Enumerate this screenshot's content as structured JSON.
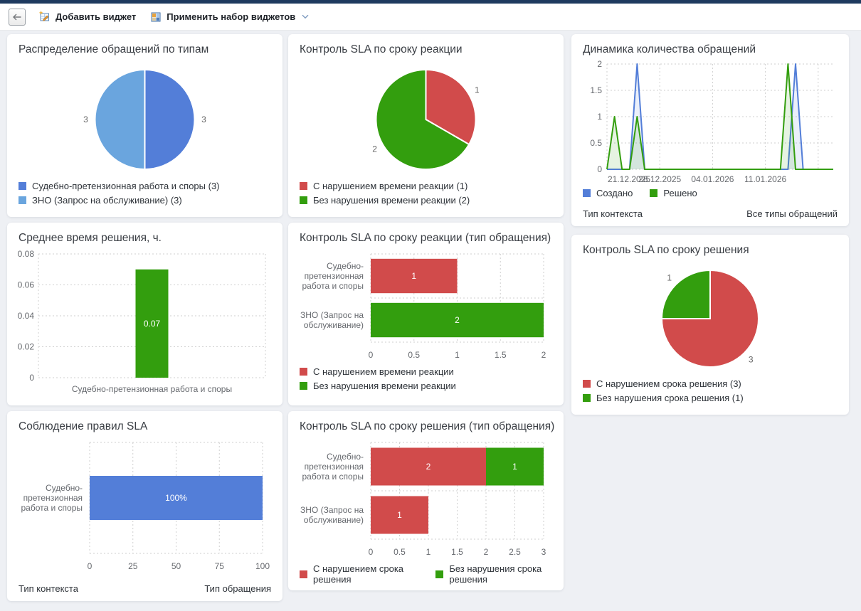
{
  "toolbar": {
    "add_widget": "Добавить виджет",
    "apply_set": "Применить набор виджетов"
  },
  "icons": {
    "back": "arrow-left-icon",
    "add_widget": "widget-pencil-icon",
    "apply_set": "widget-grid-icon",
    "chevron": "chevron-down-icon"
  },
  "colors": {
    "top_strip": "#1e3a5f",
    "page_background": "#eef0f4",
    "card_background": "#ffffff",
    "blue": "#537ed8",
    "light_blue": "#6aa5de",
    "red": "#d14b4b",
    "green": "#339e0e",
    "axis_text": "#66696e",
    "grid": "#cfcfcf"
  },
  "chart_data": [
    {
      "id": "requests-by-type",
      "type": "pie",
      "title": "Распределение обращений по типам",
      "slices": [
        {
          "label": "Судебно-претензионная работа и споры (3)",
          "value": 3,
          "callout": "3",
          "color": "#537ed8"
        },
        {
          "label": "ЗНО (Запрос на обслуживание) (3)",
          "value": 3,
          "callout": "3",
          "color": "#6aa5de"
        }
      ],
      "legend_position": "bottom",
      "legend_layout": "column"
    },
    {
      "id": "sla-reaction-control",
      "type": "pie",
      "title": "Контроль SLA по сроку реакции",
      "slices": [
        {
          "label": "С нарушением времени реакции (1)",
          "value": 1,
          "callout": "1",
          "color": "#d14b4b"
        },
        {
          "label": "Без нарушения времени реакции (2)",
          "value": 2,
          "callout": "2",
          "color": "#339e0e"
        }
      ],
      "legend_position": "bottom",
      "legend_layout": "column"
    },
    {
      "id": "requests-dynamics",
      "type": "line",
      "title": "Динамика количества обращений",
      "x_start_date": "21.12.2025",
      "x_days": 30,
      "x_tick_days": [
        0,
        7,
        14,
        21
      ],
      "x_tick_labels": [
        "21.12.2025",
        "28.12.2025",
        "04.01.2026",
        "11.01.2026"
      ],
      "x_grid_days": [
        0,
        7,
        14,
        21,
        28
      ],
      "ylim": [
        0,
        2
      ],
      "y_ticks": [
        0,
        0.5,
        1,
        1.5,
        2
      ],
      "y_tick_labels": [
        "0",
        "0.5",
        "1",
        "1.5",
        "2"
      ],
      "grid": "dotted",
      "series": [
        {
          "name": "Создано",
          "color": "#537ed8",
          "values": [
            0,
            0,
            0,
            0,
            2,
            0,
            0,
            0,
            0,
            0,
            0,
            0,
            0,
            0,
            0,
            0,
            0,
            0,
            0,
            0,
            0,
            0,
            0,
            0,
            0,
            2,
            0,
            0,
            0,
            0,
            0
          ]
        },
        {
          "name": "Решено",
          "color": "#339e0e",
          "values": [
            0,
            1,
            0,
            0,
            1,
            0,
            0,
            0,
            0,
            0,
            0,
            0,
            0,
            0,
            0,
            0,
            0,
            0,
            0,
            0,
            0,
            0,
            0,
            0,
            2,
            0,
            0,
            0,
            0,
            0,
            0
          ]
        }
      ],
      "legend_position": "bottom",
      "legend_layout": "row",
      "footer_left": "Тип контекста",
      "footer_right": "Все типы обращений"
    },
    {
      "id": "avg-resolution-time",
      "type": "bar-vertical",
      "title": "Среднее время решения, ч.",
      "categories": [
        "Судебно-претензионная работа и споры"
      ],
      "values": [
        0.07
      ],
      "value_labels": [
        "0.07"
      ],
      "bar_color": "#339e0e",
      "ylim": [
        0,
        0.08
      ],
      "y_ticks": [
        0,
        0.02,
        0.04,
        0.06,
        0.08
      ],
      "y_tick_labels": [
        "0",
        "0.02",
        "0.04",
        "0.06",
        "0.08"
      ],
      "grid": "dotted"
    },
    {
      "id": "sla-reaction-by-request-type",
      "type": "bar-horizontal",
      "title": "Контроль SLA по сроку реакции (тип обращения)",
      "categories": [
        [
          "Судебно-",
          "претензионная",
          "работа и споры"
        ],
        [
          "ЗНО (Запрос на",
          "обслуживание)"
        ]
      ],
      "bars": [
        [
          {
            "value": 1,
            "label": "1",
            "color": "#d14b4b"
          }
        ],
        [
          {
            "value": 2,
            "label": "2",
            "color": "#339e0e"
          }
        ]
      ],
      "xlim": [
        0,
        2
      ],
      "x_ticks": [
        0,
        0.5,
        1,
        1.5,
        2
      ],
      "x_tick_labels": [
        "0",
        "0.5",
        "1",
        "1.5",
        "2"
      ],
      "grid": "dotted",
      "legend": [
        {
          "label": "С нарушением времени реакции",
          "color": "#d14b4b"
        },
        {
          "label": "Без нарушения времени реакции",
          "color": "#339e0e"
        }
      ],
      "legend_layout": "column"
    },
    {
      "id": "sla-resolution-control",
      "type": "pie",
      "title": "Контроль SLA по сроку решения",
      "slices": [
        {
          "label": "С нарушением срока решения (3)",
          "value": 3,
          "callout": "3",
          "color": "#d14b4b"
        },
        {
          "label": "Без нарушения срока решения (1)",
          "value": 1,
          "callout": "1",
          "color": "#339e0e"
        }
      ],
      "legend_position": "bottom",
      "legend_layout": "column"
    },
    {
      "id": "sla-rules-compliance",
      "type": "bar-horizontal",
      "title": "Соблюдение правил SLA",
      "categories": [
        [
          "Судебно-",
          "претензионная",
          "работа и споры"
        ]
      ],
      "bars": [
        [
          {
            "value": 100,
            "label": "100%",
            "color": "#537ed8"
          }
        ]
      ],
      "xlim": [
        0,
        100
      ],
      "x_ticks": [
        0,
        25,
        50,
        75,
        100
      ],
      "x_tick_labels": [
        "0",
        "25",
        "50",
        "75",
        "100"
      ],
      "grid": "dotted",
      "footer_left": "Тип контекста",
      "footer_right": "Тип обращения"
    },
    {
      "id": "sla-resolution-by-request-type",
      "type": "bar-horizontal",
      "title": "Контроль SLA по сроку решения (тип обращения)",
      "categories": [
        [
          "Судебно-",
          "претензионная",
          "работа и споры"
        ],
        [
          "ЗНО (Запрос на",
          "обслуживание)"
        ]
      ],
      "bars": [
        [
          {
            "value": 2,
            "label": "2",
            "color": "#d14b4b"
          },
          {
            "value": 1,
            "label": "1",
            "color": "#339e0e"
          }
        ],
        [
          {
            "value": 1,
            "label": "1",
            "color": "#d14b4b"
          }
        ]
      ],
      "xlim": [
        0,
        3
      ],
      "x_ticks": [
        0,
        0.5,
        1,
        1.5,
        2,
        2.5,
        3
      ],
      "x_tick_labels": [
        "0",
        "0.5",
        "1",
        "1.5",
        "2",
        "2.5",
        "3"
      ],
      "grid": "dotted",
      "legend": [
        {
          "label": "С нарушением срока решения",
          "color": "#d14b4b"
        },
        {
          "label": "Без нарушения срока решения",
          "color": "#339e0e"
        }
      ],
      "legend_layout": "row"
    }
  ]
}
